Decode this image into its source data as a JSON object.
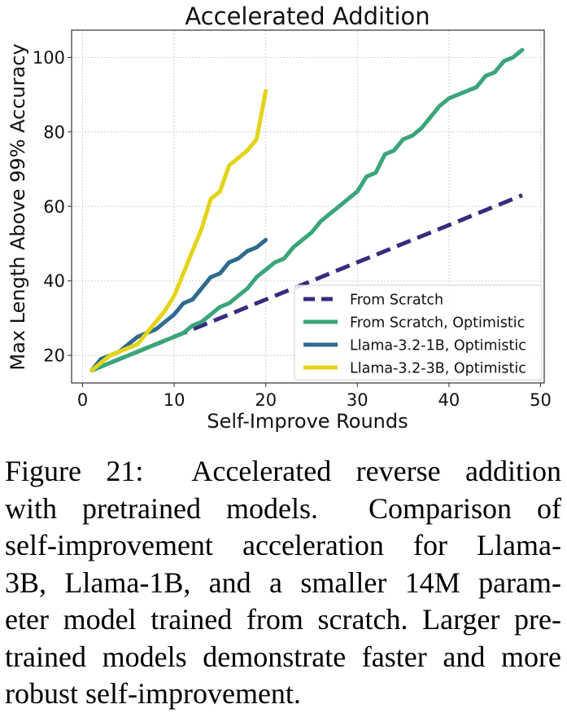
{
  "chart_data": {
    "type": "line",
    "title": "Accelerated Addition",
    "xlabel": "Self-Improve Rounds",
    "ylabel": "Max Length Above 99% Accuracy",
    "xlim": [
      -1.2,
      50.4
    ],
    "ylim": [
      12.6,
      107.3
    ],
    "xticks": [
      0,
      10,
      20,
      30,
      40,
      50
    ],
    "yticks": [
      20,
      40,
      60,
      80,
      100
    ],
    "xtick_labels": [
      "0",
      "10",
      "20",
      "30",
      "40",
      "50"
    ],
    "ytick_labels": [
      "20",
      "40",
      "60",
      "80",
      "100"
    ],
    "grid": true,
    "legend_position": "lower-right",
    "series": [
      {
        "name": "From Scratch",
        "color": "#3b2a7e",
        "style": "dashed",
        "x": [
          1,
          48
        ],
        "y": [
          16,
          63
        ]
      },
      {
        "name": "From Scratch, Optimistic",
        "color": "#3aa57a",
        "style": "solid",
        "x": [
          1,
          2,
          3,
          4,
          5,
          6,
          7,
          8,
          9,
          10,
          11,
          12,
          13,
          14,
          15,
          16,
          17,
          18,
          19,
          20,
          21,
          22,
          23,
          24,
          25,
          26,
          27,
          28,
          29,
          30,
          31,
          32,
          33,
          34,
          35,
          36,
          37,
          38,
          39,
          40,
          41,
          42,
          43,
          44,
          45,
          46,
          47,
          48
        ],
        "y": [
          16,
          17,
          18,
          19,
          20,
          21,
          22,
          23,
          24,
          25,
          26,
          28,
          29,
          31,
          33,
          34,
          36,
          38,
          41,
          43,
          45,
          46,
          49,
          51,
          53,
          56,
          58,
          60,
          62,
          64,
          68,
          69,
          74,
          75,
          78,
          79,
          81,
          84,
          87,
          89,
          90,
          91,
          92,
          95,
          96,
          99,
          100,
          102
        ]
      },
      {
        "name": "Llama-3.2-1B, Optimistic",
        "color": "#2e6b8e",
        "style": "solid",
        "x": [
          1,
          2,
          3,
          4,
          5,
          6,
          7,
          8,
          9,
          10,
          11,
          12,
          13,
          14,
          15,
          16,
          17,
          18,
          19,
          20
        ],
        "y": [
          16,
          19,
          20,
          21,
          23,
          25,
          26,
          27,
          29,
          31,
          34,
          35,
          38,
          41,
          42,
          45,
          46,
          48,
          49,
          51
        ]
      },
      {
        "name": "Llama-3.2-3B, Optimistic",
        "color": "#e3d418",
        "style": "solid",
        "x": [
          1,
          2,
          3,
          4,
          5,
          6,
          7,
          8,
          9,
          10,
          11,
          12,
          13,
          14,
          15,
          16,
          17,
          18,
          19,
          20
        ],
        "y": [
          16,
          18,
          20,
          21,
          22,
          23,
          26,
          29,
          32,
          36,
          42,
          48,
          54,
          62,
          64,
          71,
          73,
          75,
          78,
          91
        ]
      }
    ]
  },
  "caption": {
    "lines": [
      "Figure 21:  Accelerated reverse addition",
      "with pretrained models.  Comparison of",
      "self-improvement acceleration for Llama-",
      "3B, Llama-1B, and a smaller 14M param-",
      "eter model trained from scratch. Larger pre-",
      "trained models demonstrate faster and more",
      "robust self-improvement."
    ]
  }
}
